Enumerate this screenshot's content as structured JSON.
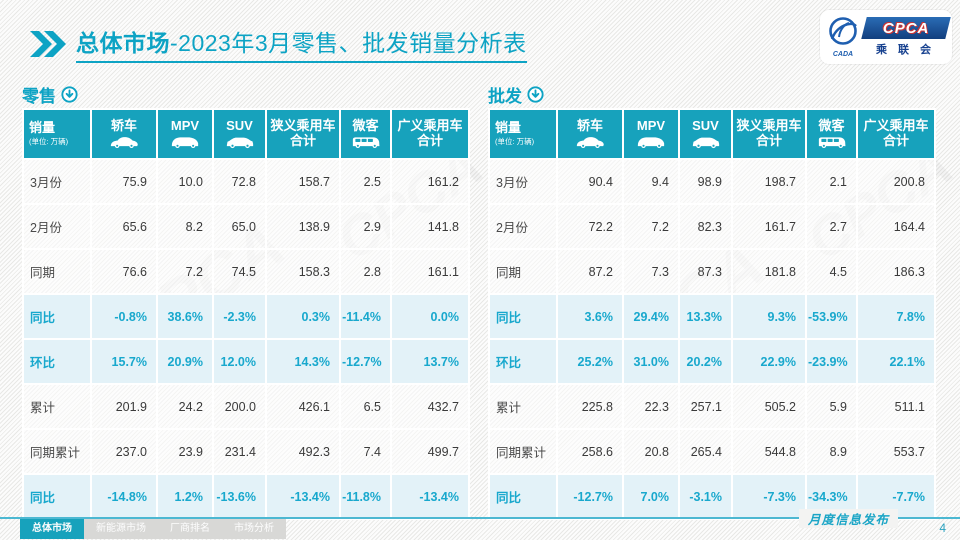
{
  "header": {
    "title_emphasis": "总体市场",
    "title_rest": "-2023年3月零售、批发销量分析表",
    "logo": {
      "acronym": "CPCA",
      "cn_name": "乘 联 会",
      "emblem_text": "CADA"
    }
  },
  "watermark": "CPCA",
  "columns": [
    {
      "label": "销量",
      "sub": "(单位: 万辆)"
    },
    {
      "label": "轿车",
      "icon": "sedan"
    },
    {
      "label": "MPV",
      "icon": "mpv"
    },
    {
      "label": "SUV",
      "icon": "suv"
    },
    {
      "label": "狭义乘用车",
      "label2": "合计"
    },
    {
      "label": "微客",
      "icon": "van"
    },
    {
      "label": "广义乘用车",
      "label2": "合计"
    }
  ],
  "tables": [
    {
      "name": "零售",
      "rows": [
        {
          "label": "3月份",
          "type": "normal",
          "values": [
            "75.9",
            "10.0",
            "72.8",
            "158.7",
            "2.5",
            "161.2"
          ]
        },
        {
          "label": "2月份",
          "type": "normal",
          "values": [
            "65.6",
            "8.2",
            "65.0",
            "138.9",
            "2.9",
            "141.8"
          ]
        },
        {
          "label": "同期",
          "type": "normal",
          "values": [
            "76.6",
            "7.2",
            "74.5",
            "158.3",
            "2.8",
            "161.1"
          ]
        },
        {
          "label": "同比",
          "type": "pct",
          "values": [
            "-0.8%",
            "38.6%",
            "-2.3%",
            "0.3%",
            "-11.4%",
            "0.0%"
          ]
        },
        {
          "label": "环比",
          "type": "pct",
          "values": [
            "15.7%",
            "20.9%",
            "12.0%",
            "14.3%",
            "-12.7%",
            "13.7%"
          ]
        },
        {
          "label": "累计",
          "type": "normal",
          "values": [
            "201.9",
            "24.2",
            "200.0",
            "426.1",
            "6.5",
            "432.7"
          ]
        },
        {
          "label": "同期累计",
          "type": "normal",
          "values": [
            "237.0",
            "23.9",
            "231.4",
            "492.3",
            "7.4",
            "499.7"
          ]
        },
        {
          "label": "同比",
          "type": "pct",
          "values": [
            "-14.8%",
            "1.2%",
            "-13.6%",
            "-13.4%",
            "-11.8%",
            "-13.4%"
          ]
        }
      ]
    },
    {
      "name": "批发",
      "rows": [
        {
          "label": "3月份",
          "type": "normal",
          "values": [
            "90.4",
            "9.4",
            "98.9",
            "198.7",
            "2.1",
            "200.8"
          ]
        },
        {
          "label": "2月份",
          "type": "normal",
          "values": [
            "72.2",
            "7.2",
            "82.3",
            "161.7",
            "2.7",
            "164.4"
          ]
        },
        {
          "label": "同期",
          "type": "normal",
          "values": [
            "87.2",
            "7.3",
            "87.3",
            "181.8",
            "4.5",
            "186.3"
          ]
        },
        {
          "label": "同比",
          "type": "pct",
          "values": [
            "3.6%",
            "29.4%",
            "13.3%",
            "9.3%",
            "-53.9%",
            "7.8%"
          ]
        },
        {
          "label": "环比",
          "type": "pct",
          "values": [
            "25.2%",
            "31.0%",
            "20.2%",
            "22.9%",
            "-23.9%",
            "22.1%"
          ]
        },
        {
          "label": "累计",
          "type": "normal",
          "values": [
            "225.8",
            "22.3",
            "257.1",
            "505.2",
            "5.9",
            "511.1"
          ]
        },
        {
          "label": "同期累计",
          "type": "normal",
          "values": [
            "258.6",
            "20.8",
            "265.4",
            "544.8",
            "8.9",
            "553.7"
          ]
        },
        {
          "label": "同比",
          "type": "pct",
          "values": [
            "-12.7%",
            "7.0%",
            "-3.1%",
            "-7.3%",
            "-34.3%",
            "-7.7%"
          ]
        }
      ]
    }
  ],
  "footer": {
    "tabs": [
      {
        "label": "总体市场",
        "slug": "overall-market",
        "active": true
      },
      {
        "label": "新能源市场",
        "slug": "nev-market",
        "active": false
      },
      {
        "label": "厂商排名",
        "slug": "oem-ranking",
        "active": false
      },
      {
        "label": "市场分析",
        "slug": "market-analysis",
        "active": false
      }
    ],
    "note": "月度信息发布",
    "page": "4"
  },
  "colors": {
    "accent": "#17a2bc",
    "title": "#0da3c4",
    "pct_text": "#18a8cd",
    "pct_row_bg": "#e3f2f8",
    "footer_line": "#4cb8d2",
    "inactive_tab": "#d8d8d6"
  }
}
